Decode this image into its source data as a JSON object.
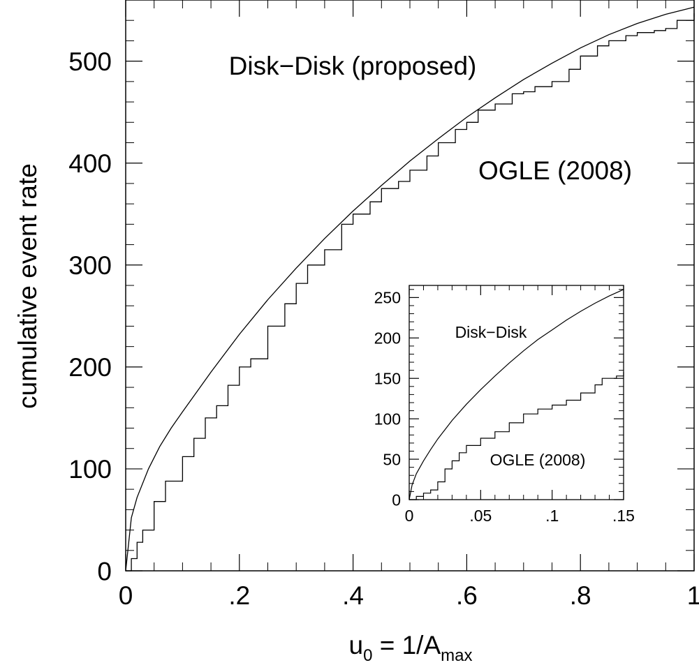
{
  "chart_data": [
    {
      "type": "line",
      "title": "",
      "xlabel": "u",
      "xlabel_sub": "0",
      "xlabel_mid": " = 1/A",
      "xlabel_sub2": "max",
      "ylabel": "cumulative event rate",
      "xlim": [
        0,
        1
      ],
      "ylim": [
        0,
        560
      ],
      "x_ticks": [
        0,
        0.2,
        0.4,
        0.6,
        0.8,
        1
      ],
      "x_tick_labels": [
        "0",
        ".2",
        ".4",
        ".6",
        ".8",
        "1"
      ],
      "y_ticks": [
        0,
        100,
        200,
        300,
        400,
        500
      ],
      "y_tick_labels": [
        "0",
        "100",
        "200",
        "300",
        "400",
        "500"
      ],
      "grid": false,
      "series": [
        {
          "name": "Disk−Disk (proposed)",
          "x": [
            0,
            0.01,
            0.02,
            0.04,
            0.06,
            0.08,
            0.1,
            0.15,
            0.2,
            0.25,
            0.3,
            0.35,
            0.4,
            0.45,
            0.5,
            0.55,
            0.6,
            0.65,
            0.7,
            0.75,
            0.8,
            0.85,
            0.9,
            0.95,
            1.0
          ],
          "values": [
            0,
            52,
            72,
            100,
            122,
            140,
            156,
            195,
            232,
            266,
            297,
            326,
            353,
            378,
            402,
            424,
            445,
            464,
            482,
            498,
            513,
            526,
            537,
            546,
            553
          ]
        },
        {
          "name": "OGLE (2008)",
          "x": [
            0,
            0.01,
            0.02,
            0.03,
            0.05,
            0.07,
            0.1,
            0.12,
            0.14,
            0.16,
            0.18,
            0.2,
            0.22,
            0.25,
            0.28,
            0.3,
            0.32,
            0.35,
            0.38,
            0.4,
            0.43,
            0.45,
            0.48,
            0.5,
            0.53,
            0.55,
            0.58,
            0.6,
            0.62,
            0.65,
            0.68,
            0.7,
            0.72,
            0.75,
            0.78,
            0.8,
            0.83,
            0.85,
            0.88,
            0.9,
            0.93,
            0.95,
            0.97,
            1.0
          ],
          "values": [
            0,
            12,
            28,
            40,
            68,
            88,
            112,
            130,
            150,
            162,
            182,
            200,
            208,
            240,
            262,
            282,
            300,
            315,
            340,
            350,
            362,
            375,
            382,
            393,
            407,
            420,
            433,
            440,
            452,
            458,
            468,
            470,
            475,
            480,
            492,
            505,
            515,
            520,
            525,
            528,
            530,
            532,
            540,
            547
          ]
        }
      ],
      "annotations": [
        "Disk−Disk (proposed)",
        "OGLE (2008)"
      ]
    },
    {
      "type": "line",
      "title": "",
      "xlim": [
        0,
        0.15
      ],
      "ylim": [
        0,
        265
      ],
      "x_ticks": [
        0,
        0.05,
        0.1,
        0.15
      ],
      "x_tick_labels": [
        "0",
        ".05",
        ".1",
        ".15"
      ],
      "y_ticks": [
        0,
        50,
        100,
        150,
        200,
        250
      ],
      "y_tick_labels": [
        "0",
        "50",
        "100",
        "150",
        "200",
        "250"
      ],
      "grid": false,
      "series": [
        {
          "name": "Disk−Disk",
          "x": [
            0,
            0.002,
            0.005,
            0.01,
            0.015,
            0.02,
            0.03,
            0.04,
            0.05,
            0.06,
            0.07,
            0.08,
            0.09,
            0.1,
            0.11,
            0.12,
            0.13,
            0.14,
            0.15
          ],
          "values": [
            0,
            18,
            32,
            48,
            62,
            75,
            98,
            118,
            136,
            153,
            169,
            184,
            198,
            210,
            222,
            233,
            243,
            252,
            260
          ]
        },
        {
          "name": "OGLE (2008)",
          "x": [
            0,
            0.005,
            0.01,
            0.015,
            0.02,
            0.025,
            0.03,
            0.035,
            0.04,
            0.05,
            0.06,
            0.07,
            0.08,
            0.09,
            0.1,
            0.11,
            0.12,
            0.13,
            0.135,
            0.14,
            0.145,
            0.15
          ],
          "values": [
            0,
            4,
            8,
            12,
            22,
            38,
            48,
            58,
            67,
            76,
            84,
            95,
            106,
            112,
            117,
            123,
            132,
            142,
            150,
            150,
            153,
            158
          ]
        }
      ],
      "annotations": [
        "Disk−Disk",
        "OGLE (2008)"
      ]
    }
  ]
}
